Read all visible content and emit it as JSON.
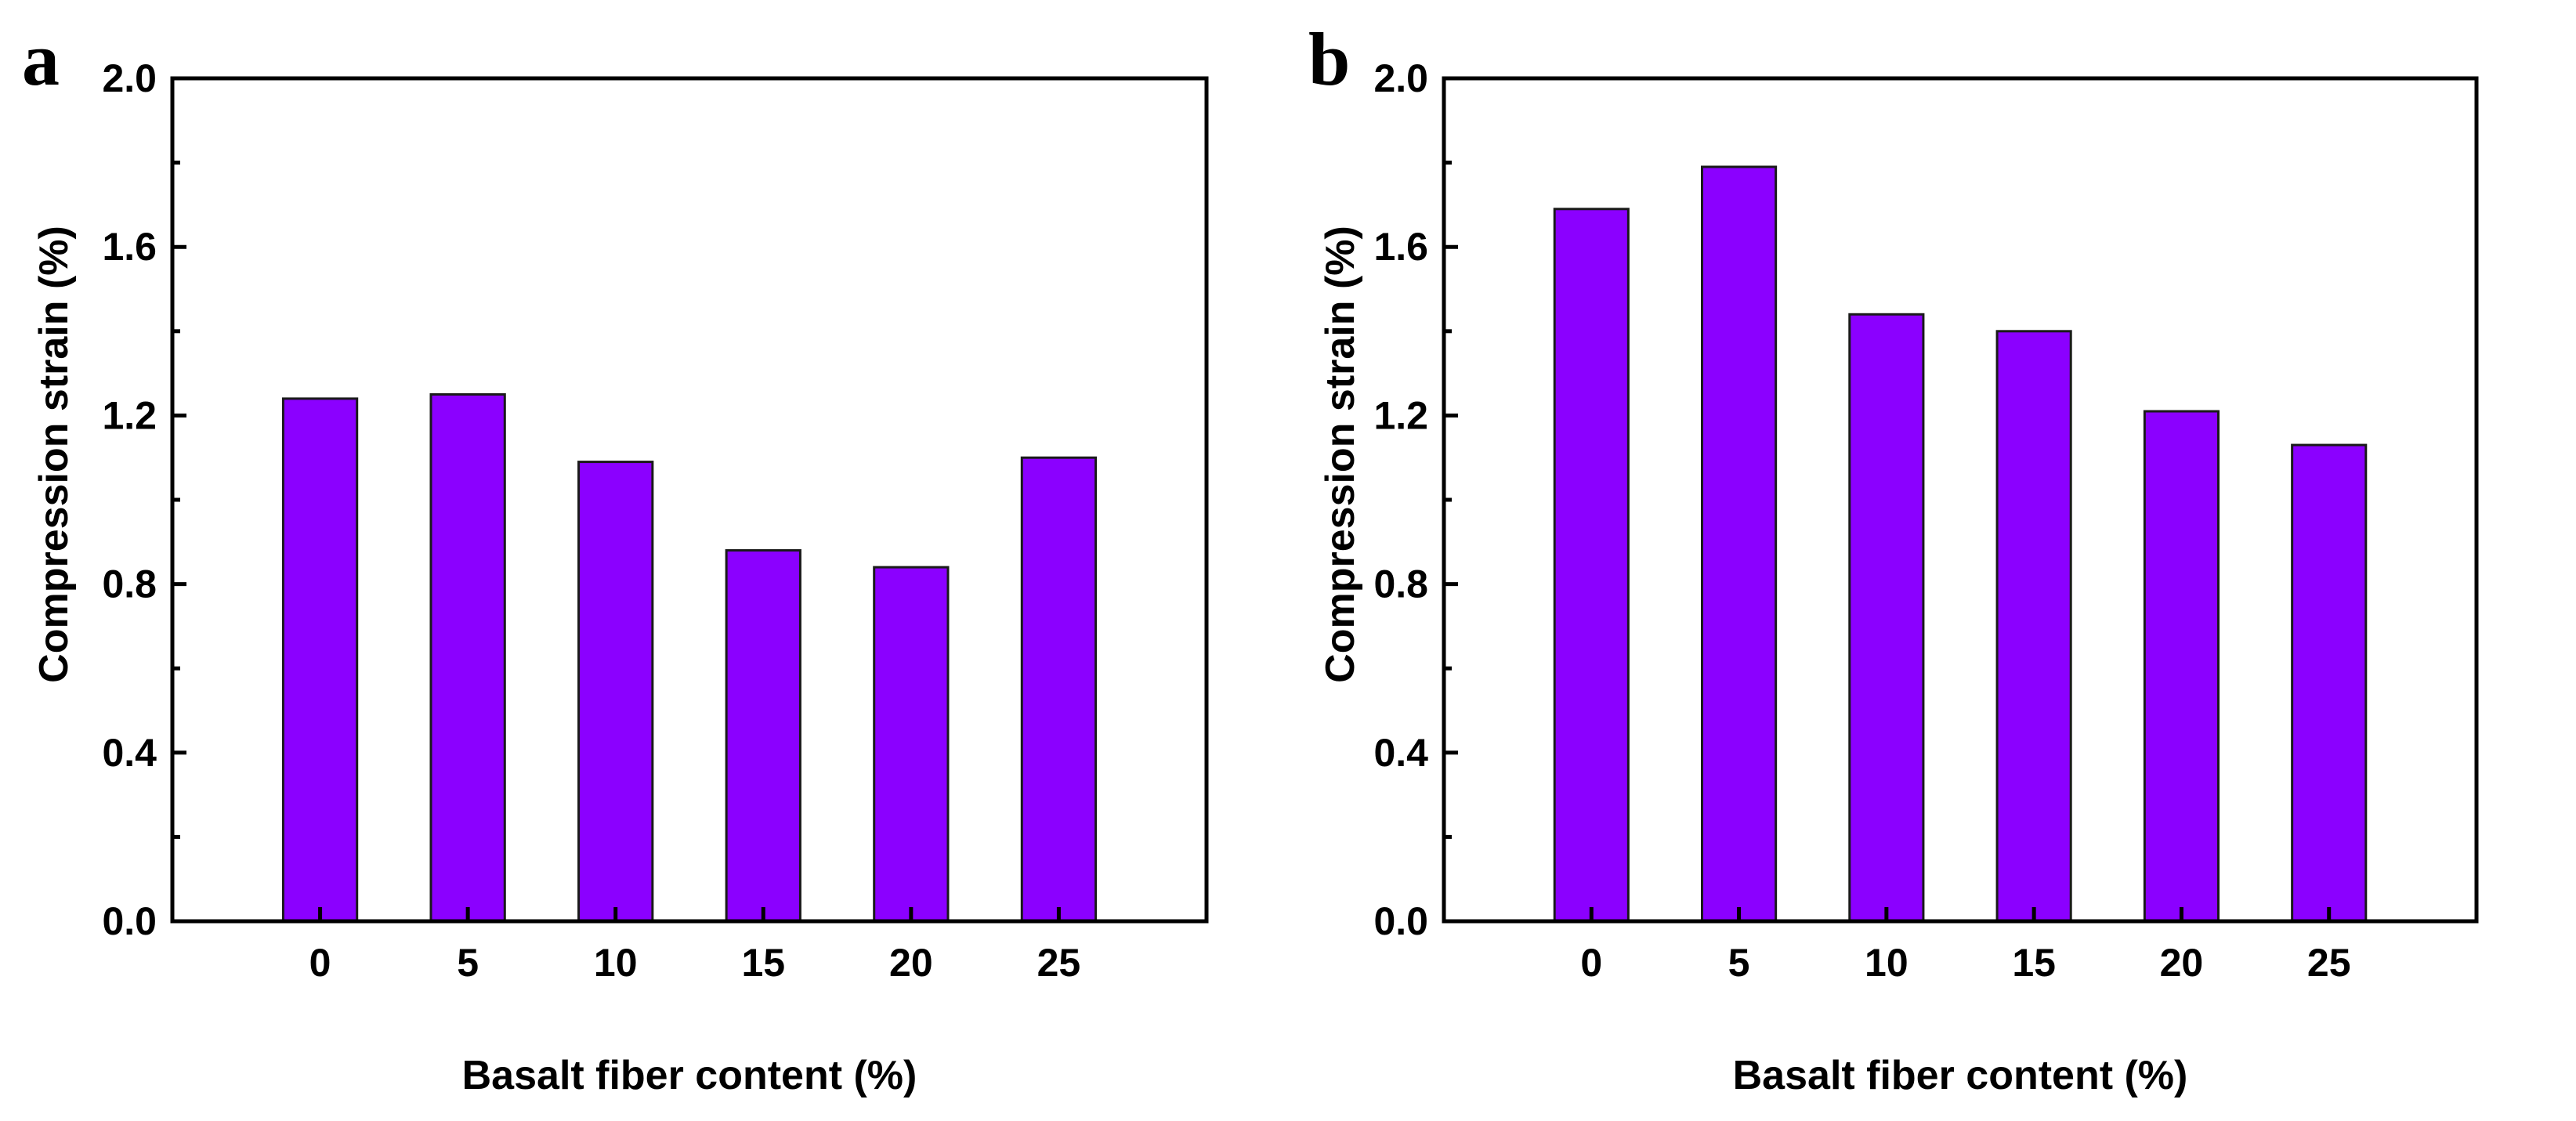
{
  "colors": {
    "bar_fill": "#8b00ff",
    "bar_stroke": "#1a1a1a",
    "axis": "#000000"
  },
  "chart_data": [
    {
      "panel_label": "a",
      "type": "bar",
      "categories": [
        "0",
        "5",
        "10",
        "15",
        "20",
        "25"
      ],
      "values": [
        1.24,
        1.25,
        1.09,
        0.88,
        0.84,
        1.1
      ],
      "xlabel": "Basalt fiber content (%)",
      "ylabel": "Compression strain (%)",
      "ylim": [
        0,
        2.0
      ],
      "yticks": [
        "0.0",
        "0.4",
        "0.8",
        "1.2",
        "1.6",
        "2.0"
      ],
      "grid": false
    },
    {
      "panel_label": "b",
      "type": "bar",
      "categories": [
        "0",
        "5",
        "10",
        "15",
        "20",
        "25"
      ],
      "values": [
        1.69,
        1.79,
        1.44,
        1.4,
        1.21,
        1.13
      ],
      "xlabel": "Basalt fiber content (%)",
      "ylabel": "Compression strain (%)",
      "ylim": [
        0,
        2.0
      ],
      "yticks": [
        "0.0",
        "0.4",
        "0.8",
        "1.2",
        "1.6",
        "2.0"
      ],
      "grid": false
    }
  ]
}
